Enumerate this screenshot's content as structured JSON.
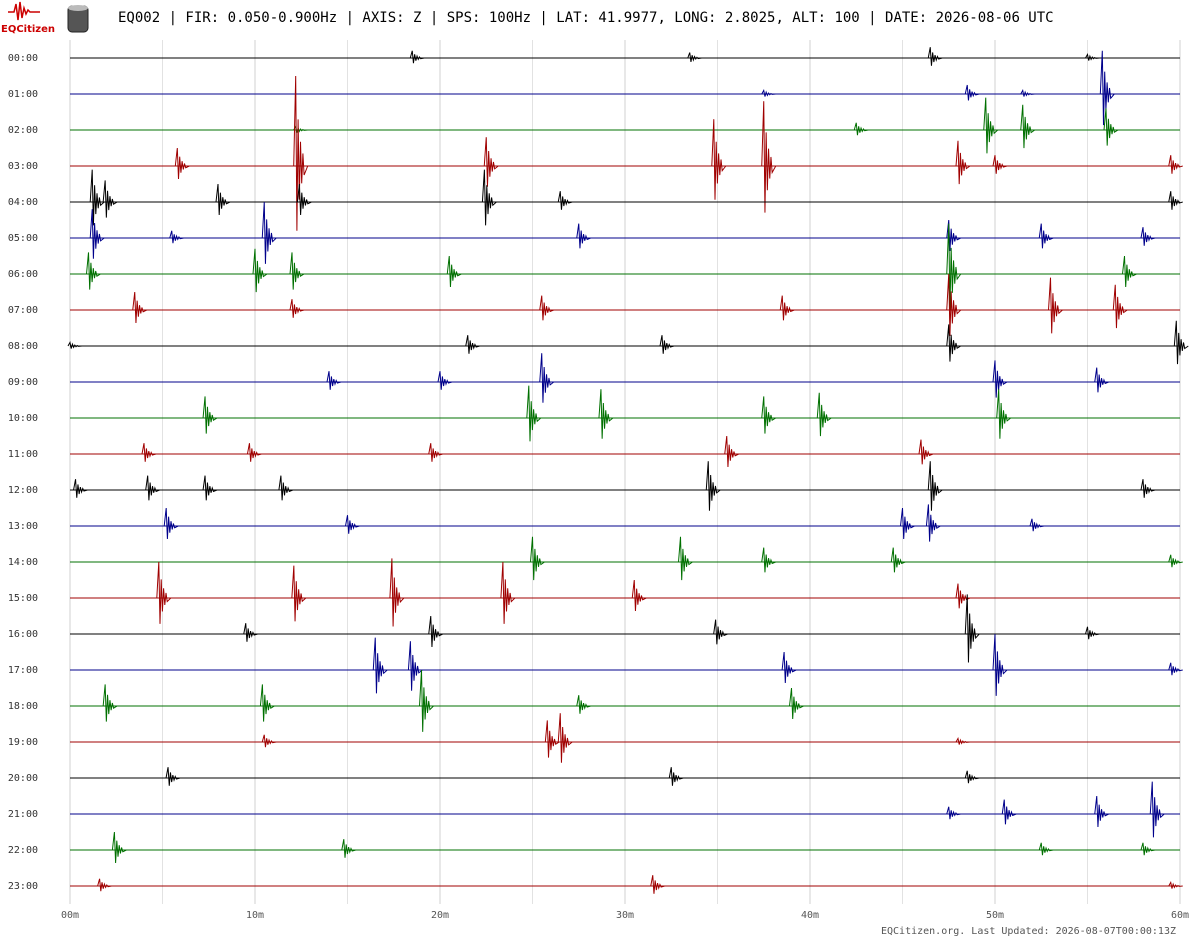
{
  "logo_text": "EQCitizen",
  "chart_data": {
    "type": "helicorder",
    "title": "EQ002 | FIR: 0.050-0.900Hz | AXIS: Z | SPS: 100Hz | LAT: 41.9977, LONG: 2.8025, ALT: 100 | DATE: 2026-08-06 UTC",
    "footer": "EQCitizen.org. Last Updated: 2026-08-07T00:00:13Z",
    "categories": [
      "00:00",
      "01:00",
      "02:00",
      "03:00",
      "04:00",
      "05:00",
      "06:00",
      "07:00",
      "08:00",
      "09:00",
      "10:00",
      "11:00",
      "12:00",
      "13:00",
      "14:00",
      "15:00",
      "16:00",
      "17:00",
      "18:00",
      "19:00",
      "20:00",
      "21:00",
      "22:00",
      "23:00"
    ],
    "xlim": [
      0,
      60
    ],
    "xticks": [
      {
        "value": 0,
        "label": "00m"
      },
      {
        "value": 10,
        "label": "10m"
      },
      {
        "value": 20,
        "label": "20m"
      },
      {
        "value": 30,
        "label": "30m"
      },
      {
        "value": 40,
        "label": "40m"
      },
      {
        "value": 50,
        "label": "50m"
      },
      {
        "value": 60,
        "label": "60m"
      }
    ],
    "minor_xticks": [
      5,
      15,
      25,
      35,
      45,
      55
    ],
    "ylim": [
      -0.5,
      23.5
    ],
    "grid": true,
    "series": [
      {
        "color": "#000000",
        "x": [
          18.5,
          33.5,
          46.5,
          55
        ],
        "values": [
          0.2,
          0.15,
          0.3,
          0.1
        ]
      },
      {
        "color": "#00008b",
        "x": [
          37.5,
          48.5,
          51.5,
          55.8
        ],
        "values": [
          0.1,
          0.25,
          0.1,
          1.2
        ]
      },
      {
        "color": "#007000",
        "x": [
          12.2,
          42.5,
          49.5,
          51.5,
          56
        ],
        "values": [
          0.1,
          0.2,
          0.9,
          0.7,
          0.6
        ]
      },
      {
        "color": "#a00000",
        "x": [
          5.8,
          12.2,
          22.5,
          34.8,
          37.5,
          48,
          50,
          59.5
        ],
        "values": [
          0.5,
          2.5,
          0.8,
          1.3,
          1.8,
          0.7,
          0.3,
          0.3
        ]
      },
      {
        "color": "#000000",
        "x": [
          1.2,
          1.9,
          8,
          12.4,
          22.4,
          26.5,
          59.5
        ],
        "values": [
          0.9,
          0.6,
          0.5,
          0.5,
          0.9,
          0.3,
          0.3
        ]
      },
      {
        "color": "#00008b",
        "x": [
          1.2,
          5.5,
          10.5,
          27.5,
          47.5,
          52.5,
          58
        ],
        "values": [
          0.8,
          0.2,
          1.0,
          0.4,
          0.5,
          0.4,
          0.3
        ]
      },
      {
        "color": "#007000",
        "x": [
          1,
          10,
          12,
          20.5,
          47.5,
          57
        ],
        "values": [
          0.6,
          0.7,
          0.6,
          0.5,
          1.4,
          0.5
        ]
      },
      {
        "color": "#a00000",
        "x": [
          3.5,
          12,
          25.5,
          38.5,
          47.5,
          53,
          56.5
        ],
        "values": [
          0.5,
          0.3,
          0.4,
          0.4,
          1.0,
          0.9,
          0.7
        ]
      },
      {
        "color": "#000000",
        "x": [
          0,
          21.5,
          32,
          47.5,
          59.8
        ],
        "values": [
          0.1,
          0.3,
          0.3,
          0.6,
          0.7
        ]
      },
      {
        "color": "#00008b",
        "x": [
          14,
          20,
          25.5,
          50,
          55.5
        ],
        "values": [
          0.3,
          0.3,
          0.8,
          0.6,
          0.4
        ]
      },
      {
        "color": "#007000",
        "x": [
          7.3,
          24.8,
          28.7,
          37.5,
          40.5,
          50.2
        ],
        "values": [
          0.6,
          0.9,
          0.8,
          0.6,
          0.7,
          0.8
        ]
      },
      {
        "color": "#a00000",
        "x": [
          4,
          9.7,
          19.5,
          35.5,
          46
        ],
        "values": [
          0.3,
          0.3,
          0.3,
          0.5,
          0.4
        ]
      },
      {
        "color": "#000000",
        "x": [
          0.3,
          4.2,
          7.3,
          11.4,
          34.5,
          46.5,
          58
        ],
        "values": [
          0.3,
          0.4,
          0.4,
          0.4,
          0.8,
          0.8,
          0.3
        ]
      },
      {
        "color": "#00008b",
        "x": [
          5.2,
          15,
          45,
          46.4,
          52
        ],
        "values": [
          0.5,
          0.3,
          0.5,
          0.6,
          0.2
        ]
      },
      {
        "color": "#007000",
        "x": [
          25,
          33,
          37.5,
          44.5,
          59.5
        ],
        "values": [
          0.7,
          0.7,
          0.4,
          0.4,
          0.2
        ]
      },
      {
        "color": "#a00000",
        "x": [
          4.8,
          12.1,
          17.4,
          23.4,
          30.5,
          48
        ],
        "values": [
          1.0,
          0.9,
          1.1,
          1.0,
          0.5,
          0.4
        ]
      },
      {
        "color": "#000000",
        "x": [
          9.5,
          19.5,
          34.9,
          48.5,
          55
        ],
        "values": [
          0.3,
          0.5,
          0.4,
          1.1,
          0.2
        ]
      },
      {
        "color": "#00008b",
        "x": [
          16.5,
          18.4,
          38.6,
          50,
          59.5
        ],
        "values": [
          0.9,
          0.8,
          0.5,
          1.0,
          0.2
        ]
      },
      {
        "color": "#007000",
        "x": [
          1.9,
          10.4,
          19,
          27.5,
          39
        ],
        "values": [
          0.6,
          0.6,
          1.0,
          0.3,
          0.5
        ]
      },
      {
        "color": "#a00000",
        "x": [
          10.5,
          25.8,
          26.5,
          48
        ],
        "values": [
          0.2,
          0.6,
          0.8,
          0.1
        ]
      },
      {
        "color": "#000000",
        "x": [
          5.3,
          32.5,
          48.5
        ],
        "values": [
          0.3,
          0.3,
          0.2
        ]
      },
      {
        "color": "#00008b",
        "x": [
          47.5,
          50.5,
          55.5,
          58.5
        ],
        "values": [
          0.2,
          0.4,
          0.5,
          0.9
        ]
      },
      {
        "color": "#007000",
        "x": [
          2.4,
          14.8,
          52.5,
          58
        ],
        "values": [
          0.5,
          0.3,
          0.2,
          0.2
        ]
      },
      {
        "color": "#a00000",
        "x": [
          1.6,
          31.5,
          59.5
        ],
        "values": [
          0.2,
          0.3,
          0.1
        ]
      }
    ]
  }
}
